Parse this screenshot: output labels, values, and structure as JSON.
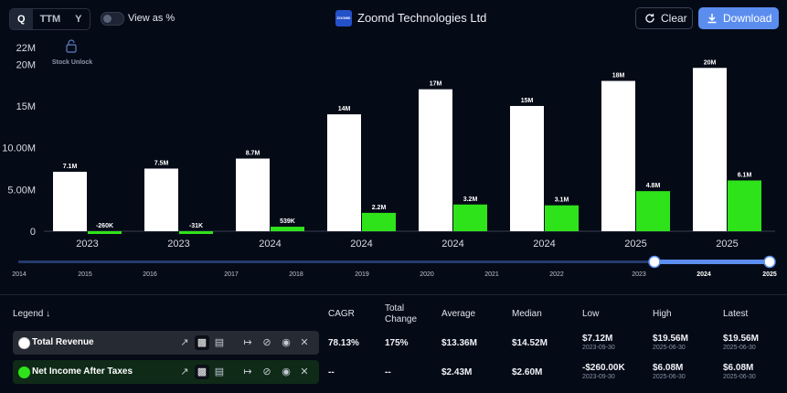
{
  "toolbar": {
    "periods": [
      "Q",
      "TTM",
      "Y"
    ],
    "view_as_pct": "View as %",
    "company": "Zoomd Technologies Ltd",
    "logo_text": "ZOOMD",
    "clear": "Clear",
    "download": "Download"
  },
  "chart_data": {
    "type": "bar",
    "title": "Zoomd Technologies Ltd",
    "categories": [
      "2023",
      "2023",
      "2024",
      "2024",
      "2024",
      "2024",
      "2025",
      "2025"
    ],
    "series": [
      {
        "name": "Total Revenue",
        "color": "#ffffff",
        "values": [
          7.12,
          7.5,
          8.7,
          14,
          17,
          15,
          18,
          19.56
        ],
        "labels": [
          "7.1M",
          "7.5M",
          "8.7M",
          "14M",
          "17M",
          "15M",
          "18M",
          "20M"
        ]
      },
      {
        "name": "Net Income After Taxes",
        "color": "#2fe31b",
        "values": [
          -0.26,
          -0.031,
          0.539,
          2.2,
          3.2,
          3.1,
          4.8,
          6.08
        ],
        "labels": [
          "-260K",
          "-31K",
          "539K",
          "2.2M",
          "3.2M",
          "3.1M",
          "4.8M",
          "6.1M"
        ]
      }
    ],
    "ylim": [
      0,
      22
    ],
    "yticks": [
      0,
      5,
      10,
      15,
      20,
      22
    ],
    "ytick_labels": [
      "0",
      "5.00M",
      "10.00M",
      "15M",
      "20M",
      "22M"
    ],
    "annotation": "Stock Unlock",
    "grid": false
  },
  "timeline": {
    "years": [
      "2014",
      "2015",
      "2016",
      "2017",
      "2018",
      "2019",
      "2020",
      "2021",
      "2022",
      "2023",
      "2024",
      "2025"
    ],
    "selected_start": "2023",
    "selected_end": "2025"
  },
  "table": {
    "headers": {
      "legend": "Legend",
      "cagr": "CAGR",
      "total_change": "Total\nChange",
      "average": "Average",
      "median": "Median",
      "low": "Low",
      "high": "High",
      "latest": "Latest"
    },
    "rows": [
      {
        "name": "Total Revenue",
        "color": "#ffffff",
        "cagr": "78.13%",
        "total_change": "175%",
        "average": "$13.36M",
        "median": "$14.52M",
        "low": "$7.12M",
        "low_date": "2023-09-30",
        "high": "$19.56M",
        "high_date": "2025-06-30",
        "latest": "$19.56M",
        "latest_date": "2025-06-30"
      },
      {
        "name": "Net Income After Taxes",
        "color": "#2fe31b",
        "cagr": "--",
        "total_change": "--",
        "average": "$2.43M",
        "median": "$2.60M",
        "low": "-$260.00K",
        "low_date": "2023-09-30",
        "high": "$6.08M",
        "high_date": "2025-06-30",
        "latest": "$6.08M",
        "latest_date": "2025-06-30"
      }
    ]
  }
}
